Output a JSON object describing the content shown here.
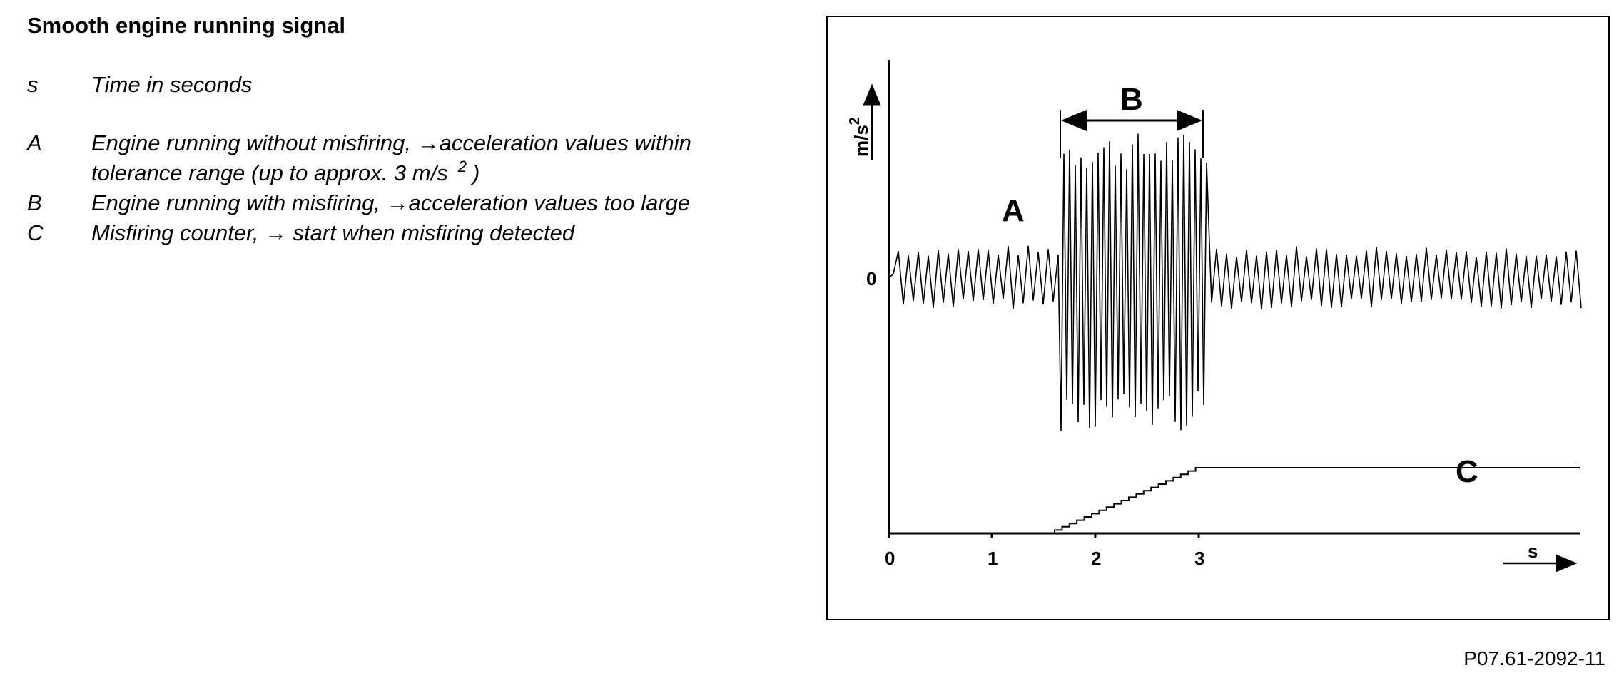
{
  "title": "Smooth engine running signal",
  "legend": [
    {
      "key": "s",
      "text": "Time in seconds"
    },
    {
      "key": "A",
      "text": "Engine running without misfiring, →acceleration values within",
      "text2": "tolerance range (up to approx. 3 m/s",
      "sup": "2",
      "close": ")"
    },
    {
      "key": "B",
      "text": "Engine running with misfiring, →acceleration values too large"
    },
    {
      "key": "C",
      "text": "Misfiring counter, → start when misfiring detected"
    }
  ],
  "diagram": {
    "y_axis_label": "m/s",
    "y_axis_sup": "2",
    "y_zero_label": "0",
    "x_axis_label": "s",
    "x_ticks": [
      "0",
      "1",
      "2",
      "3"
    ],
    "label_A": "A",
    "label_B": "B",
    "label_C": "C"
  },
  "reference": "P07.61-2092-11"
}
